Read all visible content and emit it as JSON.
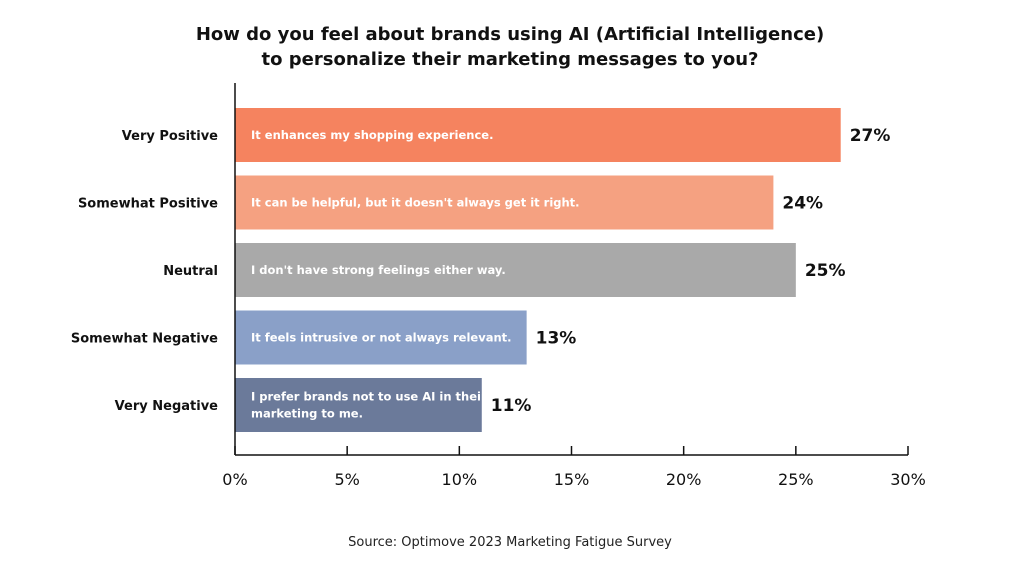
{
  "chart_data": {
    "type": "bar",
    "orientation": "horizontal",
    "title_lines": [
      "How do you feel about brands using AI (Artificial Intelligence)",
      "to personalize their marketing messages to you?"
    ],
    "categories": [
      "Very Positive",
      "Somewhat Positive",
      "Neutral",
      "Somewhat Negative",
      "Very Negative"
    ],
    "values": [
      27,
      24,
      25,
      13,
      11
    ],
    "value_labels": [
      "27%",
      "24%",
      "25%",
      "13%",
      "11%"
    ],
    "bar_texts": [
      [
        "It enhances my shopping experience."
      ],
      [
        "It can be helpful, but it doesn't always get it right."
      ],
      [
        "I don't have strong feelings either way."
      ],
      [
        "It feels intrusive or not always relevant."
      ],
      [
        "I prefer brands not to use AI in their",
        "marketing to me."
      ]
    ],
    "colors": [
      "#f5835f",
      "#f5a181",
      "#a9a9a9",
      "#8aa0c8",
      "#6b7a9a"
    ],
    "xlim": [
      0,
      30
    ],
    "xticks": [
      0,
      5,
      10,
      15,
      20,
      25,
      30
    ],
    "xtick_labels": [
      "0%",
      "5%",
      "10%",
      "15%",
      "20%",
      "25%",
      "30%"
    ],
    "grid": false,
    "legend": "none"
  },
  "source": "Source: Optimove 2023 Marketing Fatigue Survey"
}
